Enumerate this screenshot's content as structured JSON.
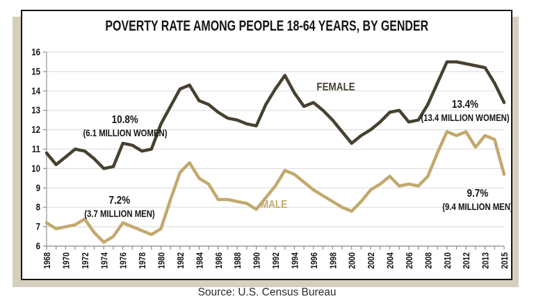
{
  "figure": {
    "title": "POVERTY RATE AMONG PEOPLE 18-64 YEARS, BY GENDER",
    "source": "Source: U.S. Census Bureau"
  },
  "annotations": {
    "female_series_label": "FEMALE",
    "male_series_label": "MALE",
    "female_start": {
      "value": "10.8%",
      "detail": "(6.1 MILLION WOMEN)"
    },
    "male_start": {
      "value": "7.2%",
      "detail": "(3.7 MILLION MEN)"
    },
    "female_end": {
      "value": "13.4%",
      "detail": "(13.4 MILLION WOMEN)"
    },
    "male_end": {
      "value": "9.7%",
      "detail": "(9.4 MILLION MEN)"
    }
  },
  "colors": {
    "female": "#474130",
    "male": "#c2a96e",
    "grid": "#dedede",
    "axis": "#9a9a9a",
    "tick": "#8a8a8a",
    "tick_text": "#141414",
    "border": "#141414",
    "shadow": "#d6cfbf"
  },
  "chart_data": {
    "type": "line",
    "title": "POVERTY RATE AMONG PEOPLE 18-64 YEARS, BY GENDER",
    "xlabel": "",
    "ylabel": "",
    "ylim": [
      6,
      16
    ],
    "yticks": [
      6,
      7,
      8,
      9,
      10,
      11,
      12,
      13,
      14,
      15,
      16
    ],
    "grid": "horizontal",
    "x_label_interval": 2,
    "years": [
      "1968",
      "1969",
      "1970",
      "1971",
      "1972",
      "1973",
      "1974",
      "1975",
      "1976",
      "1977",
      "1978",
      "1979",
      "1980",
      "1981",
      "1982",
      "1983",
      "1984",
      "1985",
      "1986",
      "1987",
      "1988",
      "1989",
      "1990",
      "1991",
      "1992",
      "1993",
      "1994",
      "1995",
      "1996",
      "1997",
      "1998",
      "1999",
      "2000",
      "2001",
      "2002",
      "2003",
      "2004",
      "2005",
      "2006",
      "2007",
      "2008",
      "2009",
      "2010",
      "2011",
      "2012",
      "2013",
      "2013",
      "2014",
      "2015"
    ],
    "visible_x_tick_labels": [
      "1968",
      "1970",
      "1972",
      "1974",
      "1976",
      "1978",
      "1980",
      "1982",
      "1984",
      "1986",
      "1988",
      "1990",
      "1992",
      "1994",
      "1996",
      "1998",
      "2000",
      "2002",
      "2004",
      "2006",
      "2008",
      "2010",
      "2012",
      "2013",
      "2015"
    ],
    "series": [
      {
        "name": "FEMALE",
        "color": "#474130",
        "values": [
          10.8,
          10.2,
          10.6,
          11.0,
          10.9,
          10.5,
          10.0,
          10.1,
          11.3,
          11.2,
          10.9,
          11.0,
          12.3,
          13.2,
          14.1,
          14.3,
          13.5,
          13.3,
          12.9,
          12.6,
          12.5,
          12.3,
          12.2,
          13.3,
          14.1,
          14.8,
          13.9,
          13.2,
          13.4,
          13.0,
          12.5,
          11.9,
          11.3,
          11.7,
          12.0,
          12.4,
          12.9,
          13.0,
          12.4,
          12.5,
          13.3,
          14.4,
          15.5,
          15.5,
          15.4,
          15.3,
          15.2,
          14.4,
          13.4
        ]
      },
      {
        "name": "MALE",
        "color": "#c2a96e",
        "values": [
          7.2,
          6.9,
          7.0,
          7.1,
          7.4,
          6.7,
          6.2,
          6.5,
          7.2,
          7.0,
          6.8,
          6.6,
          6.9,
          8.4,
          9.8,
          10.3,
          9.5,
          9.2,
          8.4,
          8.4,
          8.3,
          8.2,
          7.9,
          8.5,
          9.1,
          9.9,
          9.7,
          9.3,
          8.9,
          8.6,
          8.3,
          8.0,
          7.8,
          8.3,
          8.9,
          9.2,
          9.6,
          9.1,
          9.2,
          9.1,
          9.6,
          10.8,
          11.9,
          11.7,
          11.9,
          11.1,
          11.7,
          11.5,
          9.7
        ]
      }
    ]
  }
}
